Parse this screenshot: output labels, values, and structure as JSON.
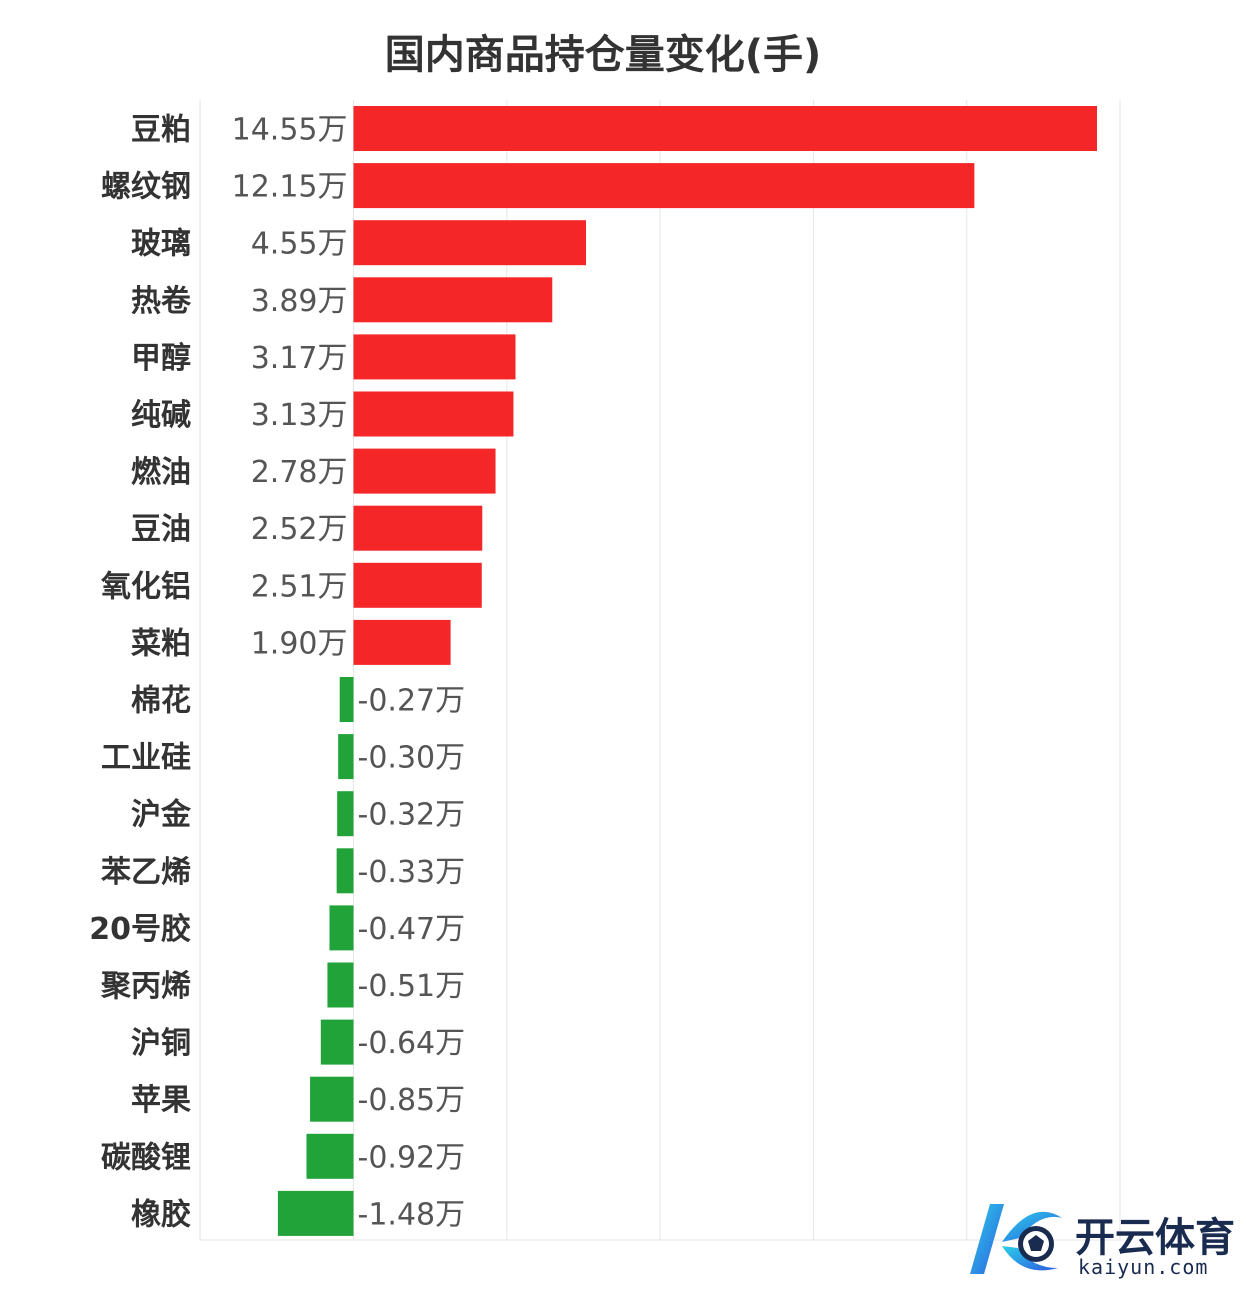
{
  "chart_data": {
    "type": "bar",
    "orientation": "horizontal",
    "title": "国内商品持仓量变化(手)",
    "unit": "万",
    "categories": [
      "豆粕",
      "螺纹钢",
      "玻璃",
      "热卷",
      "甲醇",
      "纯碱",
      "燃油",
      "豆油",
      "氧化铝",
      "菜粕",
      "棉花",
      "工业硅",
      "沪金",
      "苯乙烯",
      "20号胶",
      "聚丙烯",
      "沪铜",
      "苹果",
      "碳酸锂",
      "橡胶"
    ],
    "values": [
      14.55,
      12.15,
      4.55,
      3.89,
      3.17,
      3.13,
      2.78,
      2.52,
      2.51,
      1.9,
      -0.27,
      -0.3,
      -0.32,
      -0.33,
      -0.47,
      -0.51,
      -0.64,
      -0.85,
      -0.92,
      -1.48
    ],
    "value_labels": [
      "14.55万",
      "12.15万",
      "4.55万",
      "3.89万",
      "3.17万",
      "3.13万",
      "2.78万",
      "2.52万",
      "2.51万",
      "1.90万",
      "-0.27万",
      "-0.30万",
      "-0.32万",
      "-0.33万",
      "-0.47万",
      "-0.51万",
      "-0.64万",
      "-0.85万",
      "-0.92万",
      "-1.48万"
    ],
    "xlim": [
      -3,
      15
    ],
    "grid": true,
    "legend": "none",
    "colors": {
      "positive": "#f52628",
      "negative": "#21a33a",
      "grid": "#e6e6e6"
    }
  },
  "watermark": {
    "brand": "开云体育",
    "domain": "kaiyun.com"
  }
}
